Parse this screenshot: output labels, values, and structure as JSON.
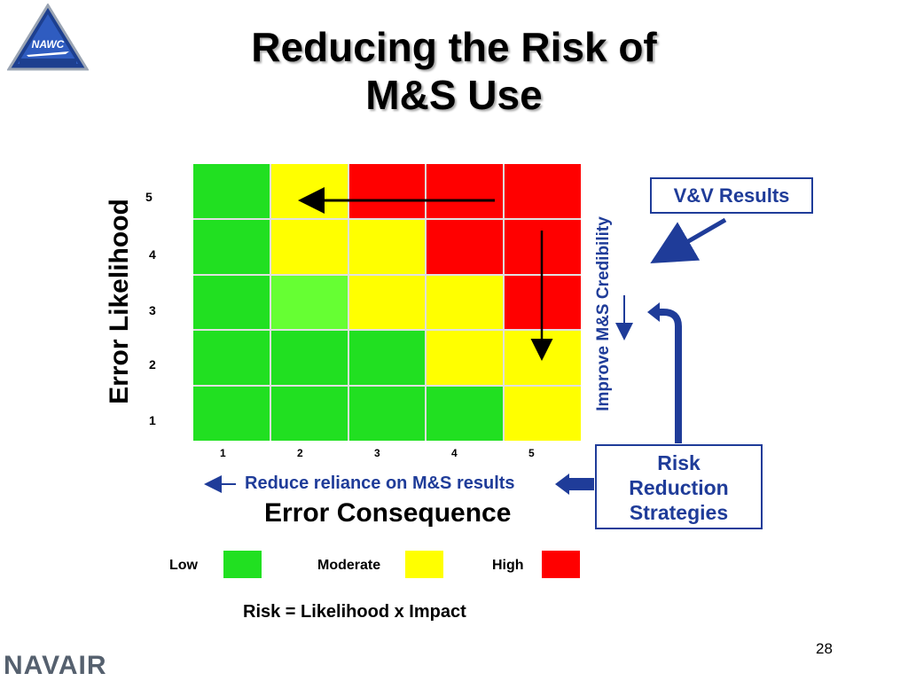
{
  "slide": {
    "title_line1": "Reducing the Risk of",
    "title_line2": "M&S Use",
    "page_number": "28",
    "footer_brand": "NAVAIR",
    "logo_text": "NAWC"
  },
  "matrix": {
    "colors": {
      "green": "#21e021",
      "light_green": "#66ff33",
      "yellow": "#ffff00",
      "red": "#ff0000"
    },
    "rows": [
      [
        "green",
        "yellow",
        "red",
        "red",
        "red"
      ],
      [
        "green",
        "yellow",
        "yellow",
        "red",
        "red"
      ],
      [
        "green",
        "light_green",
        "yellow",
        "yellow",
        "red"
      ],
      [
        "green",
        "green",
        "green",
        "yellow",
        "yellow"
      ],
      [
        "green",
        "green",
        "green",
        "green",
        "yellow"
      ]
    ],
    "y_title": "Error Likelihood",
    "y_ticks": [
      "5",
      "4",
      "3",
      "2",
      "1"
    ],
    "x_title": "Error Consequence",
    "x_ticks": [
      "1",
      "2",
      "3",
      "4",
      "5"
    ]
  },
  "annotations": {
    "improve_credibility": "Improve M&S Credibility",
    "reduce_reliance": "Reduce reliance on M&S results",
    "vv_results": "V&V Results",
    "risk_reduction": [
      "Risk",
      "Reduction",
      "Strategies"
    ]
  },
  "legend": {
    "items": [
      {
        "label": "Low",
        "color": "#21e021"
      },
      {
        "label": "Moderate",
        "color": "#ffff00"
      },
      {
        "label": "High",
        "color": "#ff0000"
      }
    ]
  },
  "formula": "Risk = Likelihood x Impact"
}
